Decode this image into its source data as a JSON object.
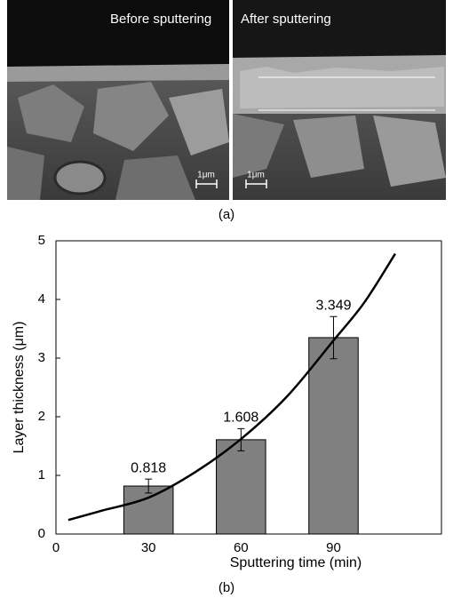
{
  "panel_a": {
    "labels": [
      "Before sputtering",
      "After sputtering"
    ],
    "scale_bars": [
      "1μm",
      "1μm"
    ],
    "caption": "(a)"
  },
  "chart_data": {
    "type": "bar",
    "x_label": "Sputtering time (min)",
    "y_label": "Layer thickness (μm)",
    "caption": "(b)",
    "x": [
      30,
      60,
      90
    ],
    "values": [
      0.818,
      1.608,
      3.349
    ],
    "errors": [
      0.12,
      0.19,
      0.36
    ],
    "color": "#808080",
    "xlim": [
      0,
      125
    ],
    "xticks": [
      0,
      30,
      60,
      90
    ],
    "ylim": [
      0,
      5
    ],
    "yticks": [
      0,
      1,
      2,
      3,
      4,
      5
    ],
    "fit_curve": {
      "color": "#000000",
      "x": [
        4,
        15,
        30,
        45,
        60,
        75,
        90,
        100,
        110
      ],
      "values": [
        0.24,
        0.4,
        0.62,
        1.05,
        1.62,
        2.35,
        3.3,
        3.95,
        4.78
      ]
    }
  }
}
